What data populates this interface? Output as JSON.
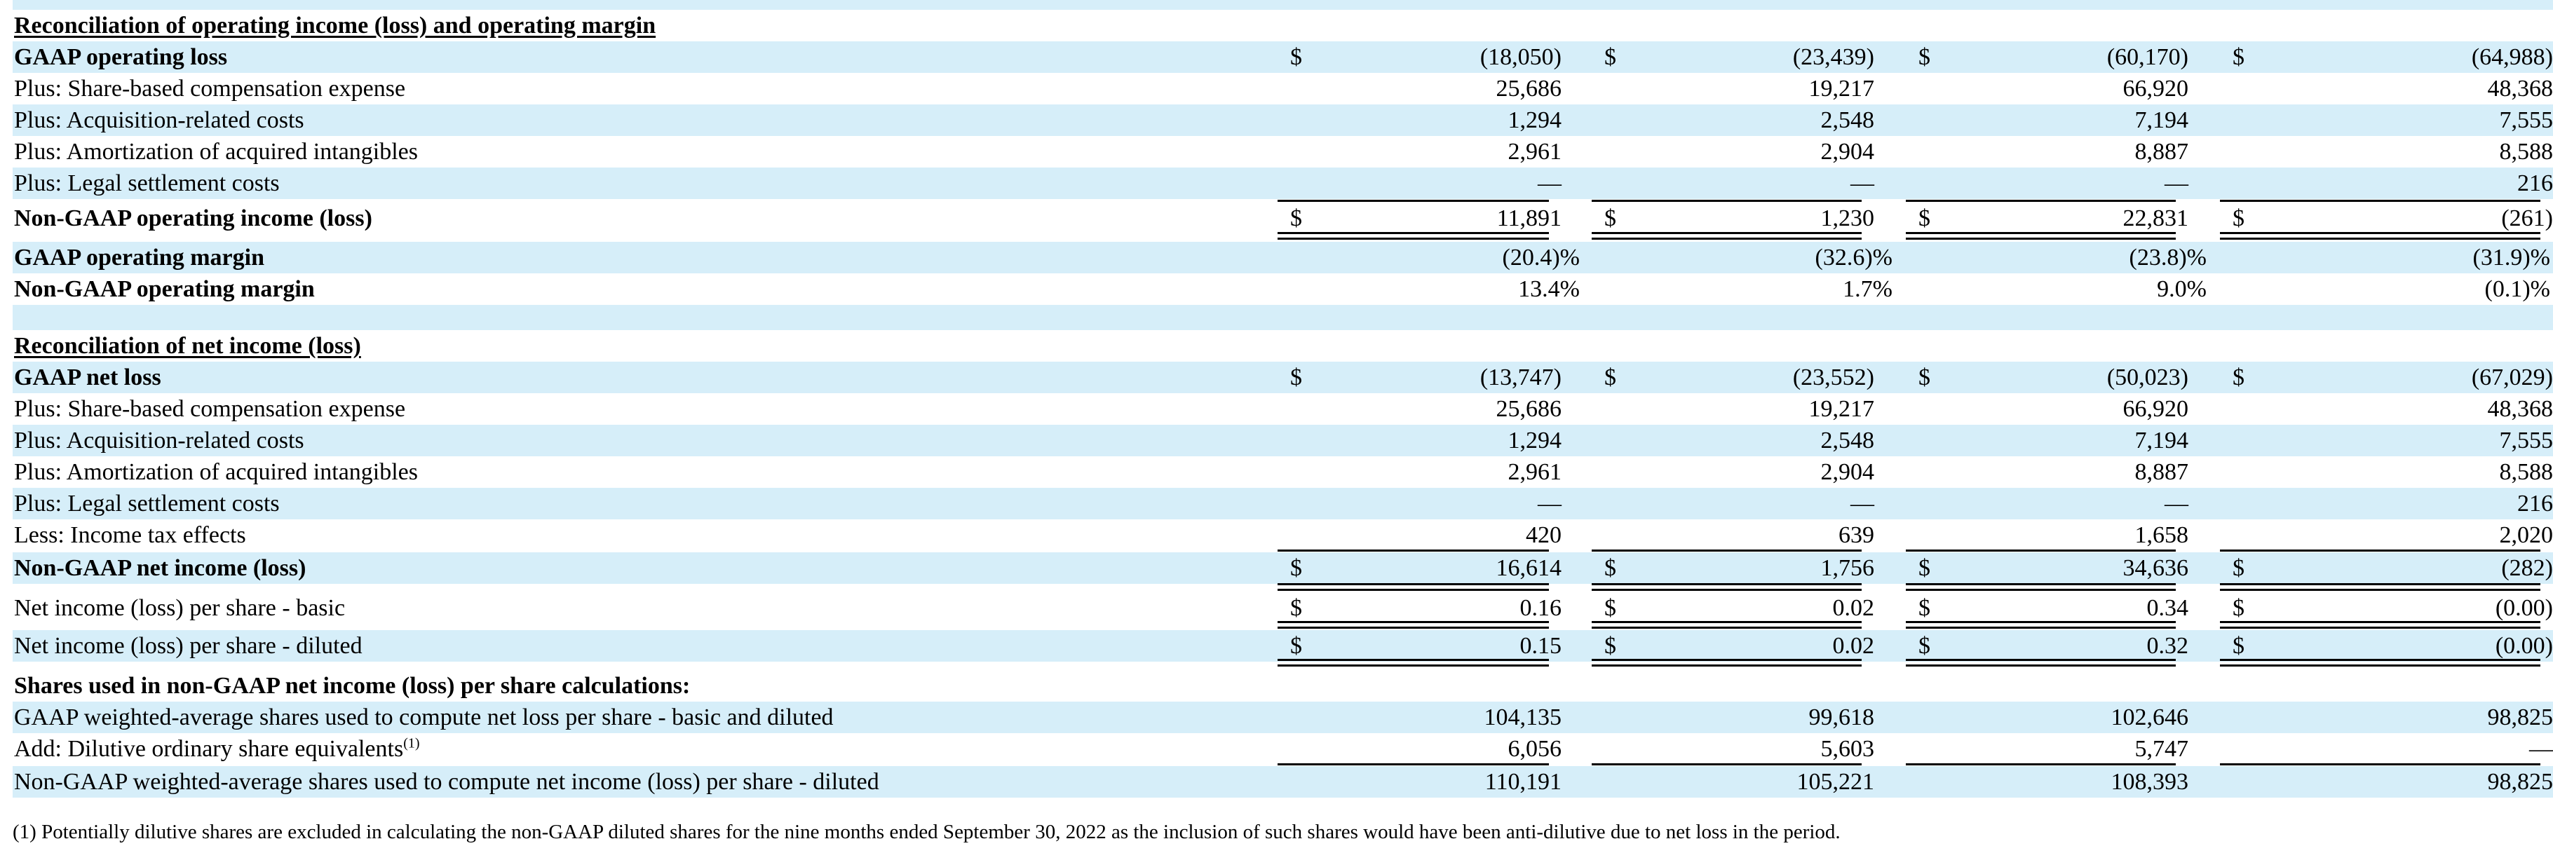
{
  "colors": {
    "band": "#d6eef9"
  },
  "operating": {
    "header": "Reconciliation of operating income (loss) and operating margin",
    "rows": [
      {
        "label": "GAAP operating loss",
        "cur": [
          "$",
          "$",
          "$",
          "$"
        ],
        "vals": [
          "(18,050)",
          "(23,439)",
          "(60,170)",
          "(64,988)"
        ]
      },
      {
        "label": "Plus: Share-based compensation expense",
        "vals": [
          "25,686",
          "19,217",
          "66,920",
          "48,368"
        ]
      },
      {
        "label": "Plus: Acquisition-related costs",
        "vals": [
          "1,294",
          "2,548",
          "7,194",
          "7,555"
        ]
      },
      {
        "label": "Plus: Amortization of acquired intangibles",
        "vals": [
          "2,961",
          "2,904",
          "8,887",
          "8,588"
        ]
      },
      {
        "label": "Plus: Legal settlement costs",
        "vals": [
          "—",
          "—",
          "—",
          "216"
        ]
      },
      {
        "label": "Non-GAAP operating income (loss)",
        "cur": [
          "$",
          "$",
          "$",
          "$"
        ],
        "vals": [
          "11,891",
          "1,230",
          "22,831",
          "(261)"
        ]
      },
      {
        "label": "GAAP operating margin",
        "vals": [
          "(20.4)%",
          "(32.6)%",
          "(23.8)%",
          "(31.9)%"
        ]
      },
      {
        "label": "Non-GAAP operating margin",
        "vals": [
          "13.4%",
          "1.7%",
          "9.0%",
          "(0.1)%"
        ]
      }
    ]
  },
  "net": {
    "header": "Reconciliation of net income (loss)",
    "rows": [
      {
        "label": "GAAP net loss",
        "cur": [
          "$",
          "$",
          "$",
          "$"
        ],
        "vals": [
          "(13,747)",
          "(23,552)",
          "(50,023)",
          "(67,029)"
        ]
      },
      {
        "label": "Plus: Share-based compensation expense",
        "vals": [
          "25,686",
          "19,217",
          "66,920",
          "48,368"
        ]
      },
      {
        "label": "Plus: Acquisition-related costs",
        "vals": [
          "1,294",
          "2,548",
          "7,194",
          "7,555"
        ]
      },
      {
        "label": "Plus: Amortization of acquired intangibles",
        "vals": [
          "2,961",
          "2,904",
          "8,887",
          "8,588"
        ]
      },
      {
        "label": "Plus: Legal settlement costs",
        "vals": [
          "—",
          "—",
          "—",
          "216"
        ]
      },
      {
        "label": "Less: Income tax effects",
        "vals": [
          "420",
          "639",
          "1,658",
          "2,020"
        ]
      },
      {
        "label": "Non-GAAP net income (loss)",
        "cur": [
          "$",
          "$",
          "$",
          "$"
        ],
        "vals": [
          "16,614",
          "1,756",
          "34,636",
          "(282)"
        ]
      },
      {
        "label": "Net income (loss) per share - basic",
        "cur": [
          "$",
          "$",
          "$",
          "$"
        ],
        "vals": [
          "0.16",
          "0.02",
          "0.34",
          "(0.00)"
        ]
      },
      {
        "label": "Net income (loss) per share - diluted",
        "cur": [
          "$",
          "$",
          "$",
          "$"
        ],
        "vals": [
          "0.15",
          "0.02",
          "0.32",
          "(0.00)"
        ]
      }
    ]
  },
  "shares": {
    "header": "Shares used in non-GAAP net income (loss) per share calculations:",
    "rows": [
      {
        "label": "GAAP weighted-average shares used to compute net loss per share - basic and diluted",
        "vals": [
          "104,135",
          "99,618",
          "102,646",
          "98,825"
        ]
      },
      {
        "label": "Add: Dilutive ordinary share equivalents",
        "sup": "(1)",
        "vals": [
          "6,056",
          "5,603",
          "5,747",
          "—"
        ]
      },
      {
        "label": "Non-GAAP weighted-average shares used to compute net income (loss) per share - diluted",
        "vals": [
          "110,191",
          "105,221",
          "108,393",
          "98,825"
        ]
      }
    ]
  },
  "footnote": "(1) Potentially dilutive shares are excluded in calculating the non-GAAP diluted shares for the nine months ended September 30, 2022 as the inclusion of such shares would have been anti-dilutive due to net loss in the period."
}
